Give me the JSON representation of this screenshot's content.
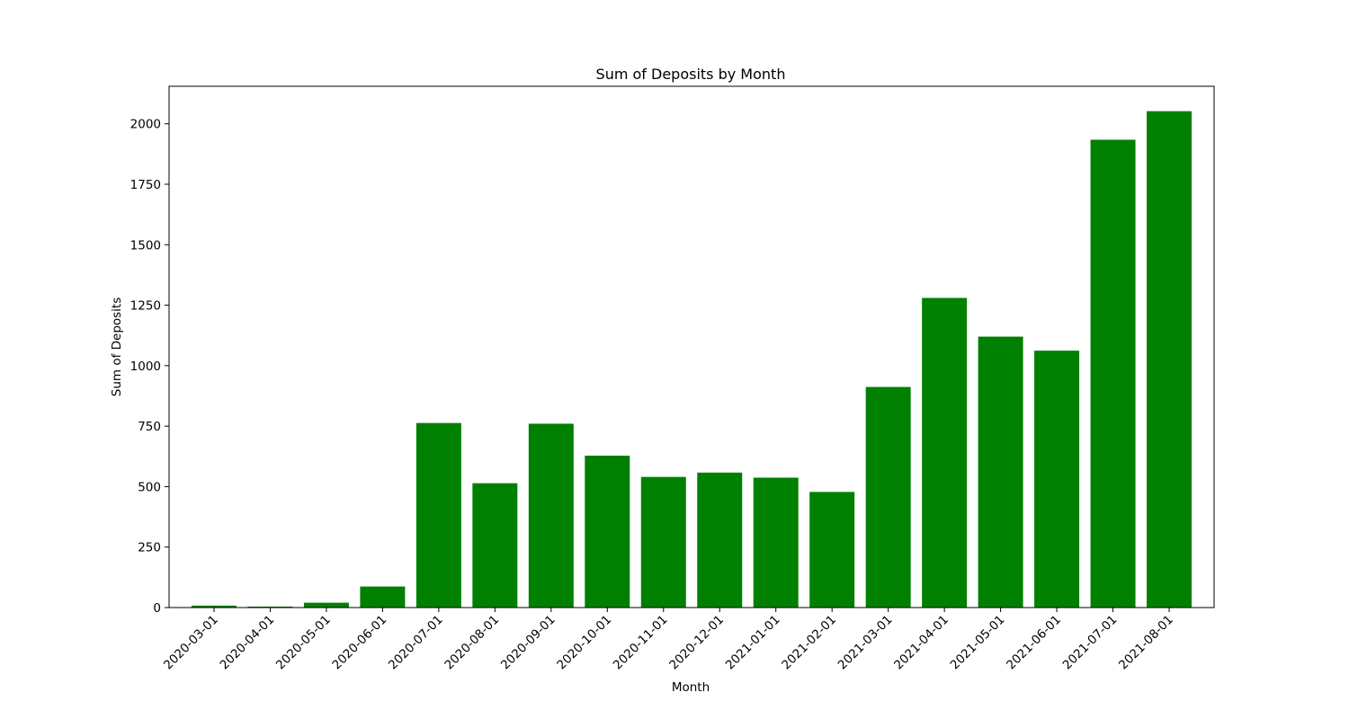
{
  "chart_data": {
    "type": "bar",
    "title": "Sum of Deposits by Month",
    "xlabel": "Month",
    "ylabel": "Sum of Deposits",
    "categories": [
      "2020-03-01",
      "2020-04-01",
      "2020-05-01",
      "2020-06-01",
      "2020-07-01",
      "2020-08-01",
      "2020-09-01",
      "2020-10-01",
      "2020-11-01",
      "2020-12-01",
      "2021-01-01",
      "2021-02-01",
      "2021-03-01",
      "2021-04-01",
      "2021-05-01",
      "2021-06-01",
      "2021-07-01",
      "2021-08-01"
    ],
    "values": [
      8,
      4,
      20,
      87,
      763,
      514,
      760,
      628,
      540,
      558,
      537,
      478,
      912,
      1280,
      1120,
      1062,
      1934,
      2052
    ],
    "ylim": [
      0,
      2155
    ],
    "yticks": [
      0,
      250,
      500,
      750,
      1000,
      1250,
      1500,
      1750,
      2000
    ],
    "bar_color": "#008000",
    "grid": false,
    "legend": false
  }
}
